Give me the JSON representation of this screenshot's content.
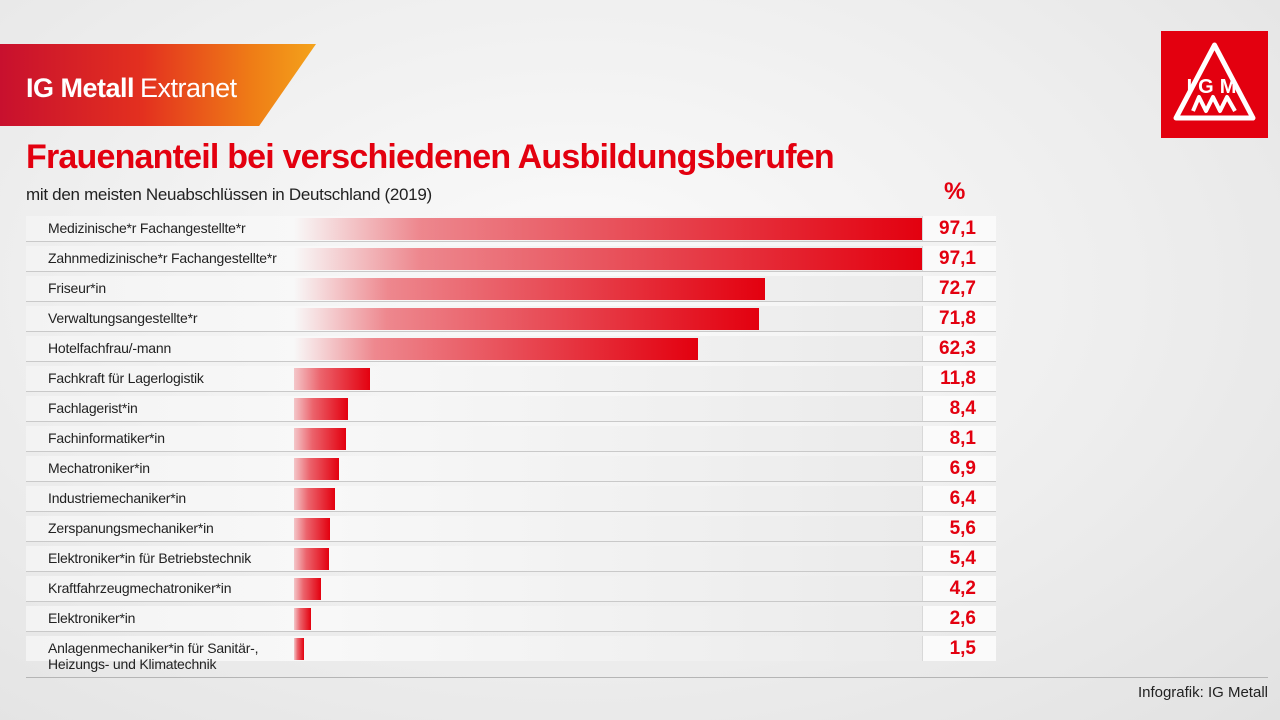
{
  "header": {
    "brand_bold": "IG Metall",
    "brand_light": "Extranet"
  },
  "logo": {
    "text": "IGM"
  },
  "colors": {
    "accent": "#e3000f"
  },
  "chart_data": {
    "type": "bar",
    "orientation": "horizontal",
    "title": "Frauenanteil bei verschiedenen Ausbildungsberufen",
    "subtitle": "mit den meisten Neuabschlüssen in Deutschland (2019)",
    "unit": "%",
    "xlim": [
      0,
      100
    ],
    "grid": false,
    "categories": [
      "Medizinische*r Fachangestellte*r",
      "Zahnmedizinische*r Fachangestellte*r",
      "Friseur*in",
      "Verwaltungsangestellte*r",
      "Hotelfachfrau/-mann",
      "Fachkraft für Lagerlogistik",
      "Fachlagerist*in",
      "Fachinformatiker*in",
      "Mechatroniker*in",
      "Industriemechaniker*in",
      "Zerspanungsmechaniker*in",
      "Elektroniker*in für Betriebstechnik",
      "Kraftfahrzeugmechatroniker*in",
      "Elektroniker*in",
      "Anlagenmechaniker*in für Sanitär-,\nHeizungs- und Klimatechnik"
    ],
    "values": [
      97.1,
      97.1,
      72.7,
      71.8,
      62.3,
      11.8,
      8.4,
      8.1,
      6.9,
      6.4,
      5.6,
      5.4,
      4.2,
      2.6,
      1.5
    ],
    "value_labels": [
      "97,1",
      "97,1",
      "72,7",
      "71,8",
      "62,3",
      "11,8",
      "8,4",
      "8,1",
      "6,9",
      "6,4",
      "5,6",
      "5,4",
      "4,2",
      "2,6",
      "1,5"
    ]
  },
  "footer": {
    "credit": "Infografik: IG Metall"
  }
}
